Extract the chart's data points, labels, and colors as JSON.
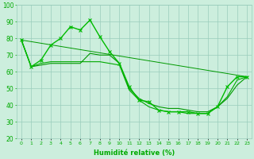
{
  "xlabel": "Humidité relative (%)",
  "line1_x": [
    0,
    1,
    2,
    3,
    4,
    5,
    6,
    7,
    8,
    9,
    10,
    11,
    12,
    13,
    14,
    15,
    16,
    17,
    18,
    19,
    20,
    21,
    22,
    23
  ],
  "line1_y": [
    79,
    63,
    67,
    76,
    80,
    87,
    85,
    91,
    81,
    72,
    65,
    51,
    43,
    42,
    37,
    36,
    36,
    36,
    35,
    35,
    39,
    51,
    57,
    57
  ],
  "line2_x": [
    0,
    1,
    2,
    3,
    4,
    5,
    6,
    7,
    8,
    9,
    10,
    11,
    12,
    13,
    14,
    15,
    16,
    17,
    18,
    19,
    20,
    21,
    22,
    23
  ],
  "line2_y": [
    79,
    63,
    65,
    66,
    66,
    66,
    66,
    66,
    66,
    65,
    64,
    49,
    43,
    39,
    37,
    36,
    36,
    35,
    35,
    35,
    39,
    45,
    55,
    57
  ],
  "line3_x": [
    0,
    1,
    2,
    3,
    4,
    5,
    6,
    7,
    8,
    9,
    10,
    11,
    12,
    13,
    14,
    15,
    16,
    17,
    18,
    19,
    20,
    21,
    22,
    23
  ],
  "line3_y": [
    79,
    63,
    64,
    65,
    65,
    65,
    65,
    71,
    70,
    70,
    65,
    50,
    44,
    41,
    39,
    38,
    38,
    37,
    36,
    36,
    39,
    44,
    52,
    57
  ],
  "trend_x": [
    0,
    23
  ],
  "trend_y": [
    79,
    57
  ],
  "ylim": [
    20,
    100
  ],
  "xlim": [
    -0.5,
    23.5
  ],
  "yticks": [
    20,
    30,
    40,
    50,
    60,
    70,
    80,
    90,
    100
  ],
  "xticks": [
    0,
    1,
    2,
    3,
    4,
    5,
    6,
    7,
    8,
    9,
    10,
    11,
    12,
    13,
    14,
    15,
    16,
    17,
    18,
    19,
    20,
    21,
    22,
    23
  ],
  "bg_color": "#cceedd",
  "grid_color": "#99ccbb",
  "line_color_main": "#00bb00",
  "line_color_mid": "#00aa00",
  "line_color_low": "#009900",
  "tick_color": "#00aa00",
  "label_color": "#00aa00"
}
